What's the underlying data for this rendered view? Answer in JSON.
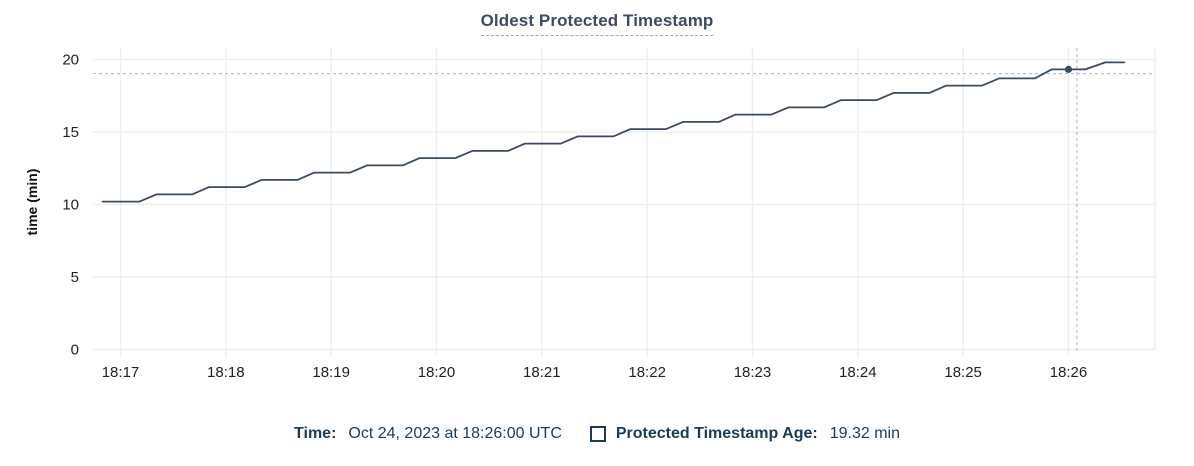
{
  "colors": {
    "line": "#3b4a62",
    "title_text": "#3e4b61",
    "legend_text": "#1c3a57",
    "crosshair": "#a9c3d2",
    "grid": "#eceef1",
    "tick_text": "#222222"
  },
  "legend": {
    "time_label": "Time:",
    "time_value": "Oct 24, 2023 at 18:26:00 UTC",
    "series_label": "Protected Timestamp Age:",
    "series_value": "19.32 min"
  },
  "chart_data": {
    "type": "line",
    "title": "Oldest Protected Timestamp",
    "xlabel": "",
    "ylabel": "time (min)",
    "ylim": [
      0,
      20
    ],
    "y_ticks": [
      0,
      5,
      10,
      15,
      20
    ],
    "x_tick_labels": [
      "18:17",
      "18:18",
      "18:19",
      "18:20",
      "18:21",
      "18:22",
      "18:23",
      "18:24",
      "18:25",
      "18:26"
    ],
    "x_unit_note": "x values in series points are minutes after 18:17 UTC",
    "xlim": [
      -0.24,
      9.83
    ],
    "grid": true,
    "legend_position": "bottom",
    "series": [
      {
        "name": "Protected Timestamp Age",
        "unit": "min",
        "shape": "staircase rising ~1 min per min in ~0.5 min steps",
        "points": [
          [
            -0.17,
            10.2
          ],
          [
            0.18,
            10.2
          ],
          [
            0.34,
            10.7
          ],
          [
            0.68,
            10.7
          ],
          [
            0.84,
            11.2
          ],
          [
            1.18,
            11.2
          ],
          [
            1.34,
            11.7
          ],
          [
            1.68,
            11.7
          ],
          [
            1.84,
            12.2
          ],
          [
            2.18,
            12.2
          ],
          [
            2.34,
            12.7
          ],
          [
            2.68,
            12.7
          ],
          [
            2.84,
            13.2
          ],
          [
            3.18,
            13.2
          ],
          [
            3.34,
            13.7
          ],
          [
            3.68,
            13.7
          ],
          [
            3.84,
            14.2
          ],
          [
            4.18,
            14.2
          ],
          [
            4.34,
            14.7
          ],
          [
            4.68,
            14.7
          ],
          [
            4.84,
            15.2
          ],
          [
            5.18,
            15.2
          ],
          [
            5.34,
            15.7
          ],
          [
            5.68,
            15.7
          ],
          [
            5.84,
            16.2
          ],
          [
            6.18,
            16.2
          ],
          [
            6.34,
            16.7
          ],
          [
            6.68,
            16.7
          ],
          [
            6.84,
            17.2
          ],
          [
            7.18,
            17.2
          ],
          [
            7.34,
            17.7
          ],
          [
            7.68,
            17.7
          ],
          [
            7.84,
            18.2
          ],
          [
            8.18,
            18.2
          ],
          [
            8.34,
            18.7
          ],
          [
            8.68,
            18.7
          ],
          [
            8.84,
            19.32
          ],
          [
            9.16,
            19.32
          ],
          [
            9.35,
            19.8
          ],
          [
            9.53,
            19.8
          ]
        ]
      }
    ],
    "hover": {
      "t": 9.0,
      "value": 19.32,
      "time_label": "18:26:00",
      "crosshair_t": 9.08,
      "crosshair_value": 19.03
    }
  }
}
